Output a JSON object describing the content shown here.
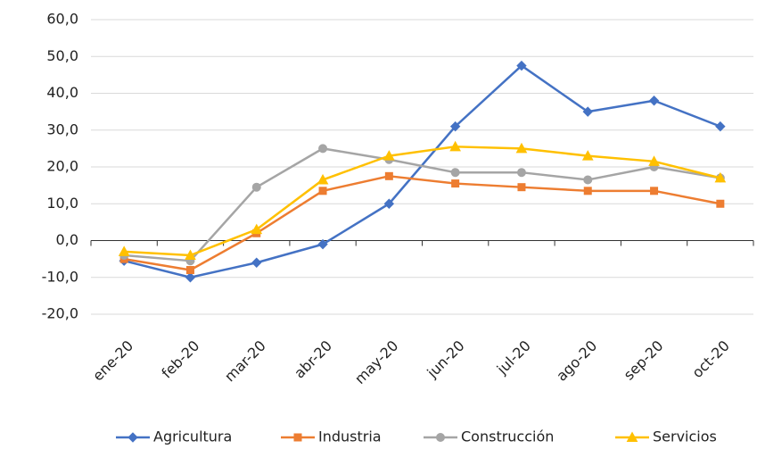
{
  "chart_data": {
    "type": "line",
    "categories": [
      "ene-20",
      "feb-20",
      "mar-20",
      "abr-20",
      "may-20",
      "jun-20",
      "jul-20",
      "ago-20",
      "sep-20",
      "oct-20"
    ],
    "series": [
      {
        "name": "Agricultura",
        "color": "#4472c4",
        "marker": "diamond",
        "values": [
          -5.5,
          -10,
          -6,
          -1,
          10,
          31,
          47.5,
          35,
          38,
          31
        ]
      },
      {
        "name": "Industria",
        "color": "#ed7d31",
        "marker": "square",
        "values": [
          -5,
          -8,
          2,
          13.5,
          17.5,
          15.5,
          14.5,
          13.5,
          13.5,
          10
        ]
      },
      {
        "name": "Construcción",
        "color": "#a5a5a5",
        "marker": "circle",
        "values": [
          -4,
          -5.5,
          14.5,
          25,
          22,
          18.5,
          18.5,
          16.5,
          20,
          17
        ]
      },
      {
        "name": "Servicios",
        "color": "#ffc000",
        "marker": "triangle",
        "values": [
          -3,
          -4,
          3,
          16.5,
          23,
          25.5,
          25,
          23,
          21.5,
          17
        ]
      }
    ],
    "ylim": [
      -20,
      60
    ],
    "yticks": [
      {
        "value": -20,
        "label": "-20,0"
      },
      {
        "value": -10,
        "label": "-10,0"
      },
      {
        "value": 0,
        "label": "0,0"
      },
      {
        "value": 10,
        "label": "10,0"
      },
      {
        "value": 20,
        "label": "20,0"
      },
      {
        "value": 30,
        "label": "30,0"
      },
      {
        "value": 40,
        "label": "40,0"
      },
      {
        "value": 50,
        "label": "50,0"
      },
      {
        "value": 60,
        "label": "60,0"
      }
    ],
    "grid": true,
    "legend": "bottom"
  }
}
